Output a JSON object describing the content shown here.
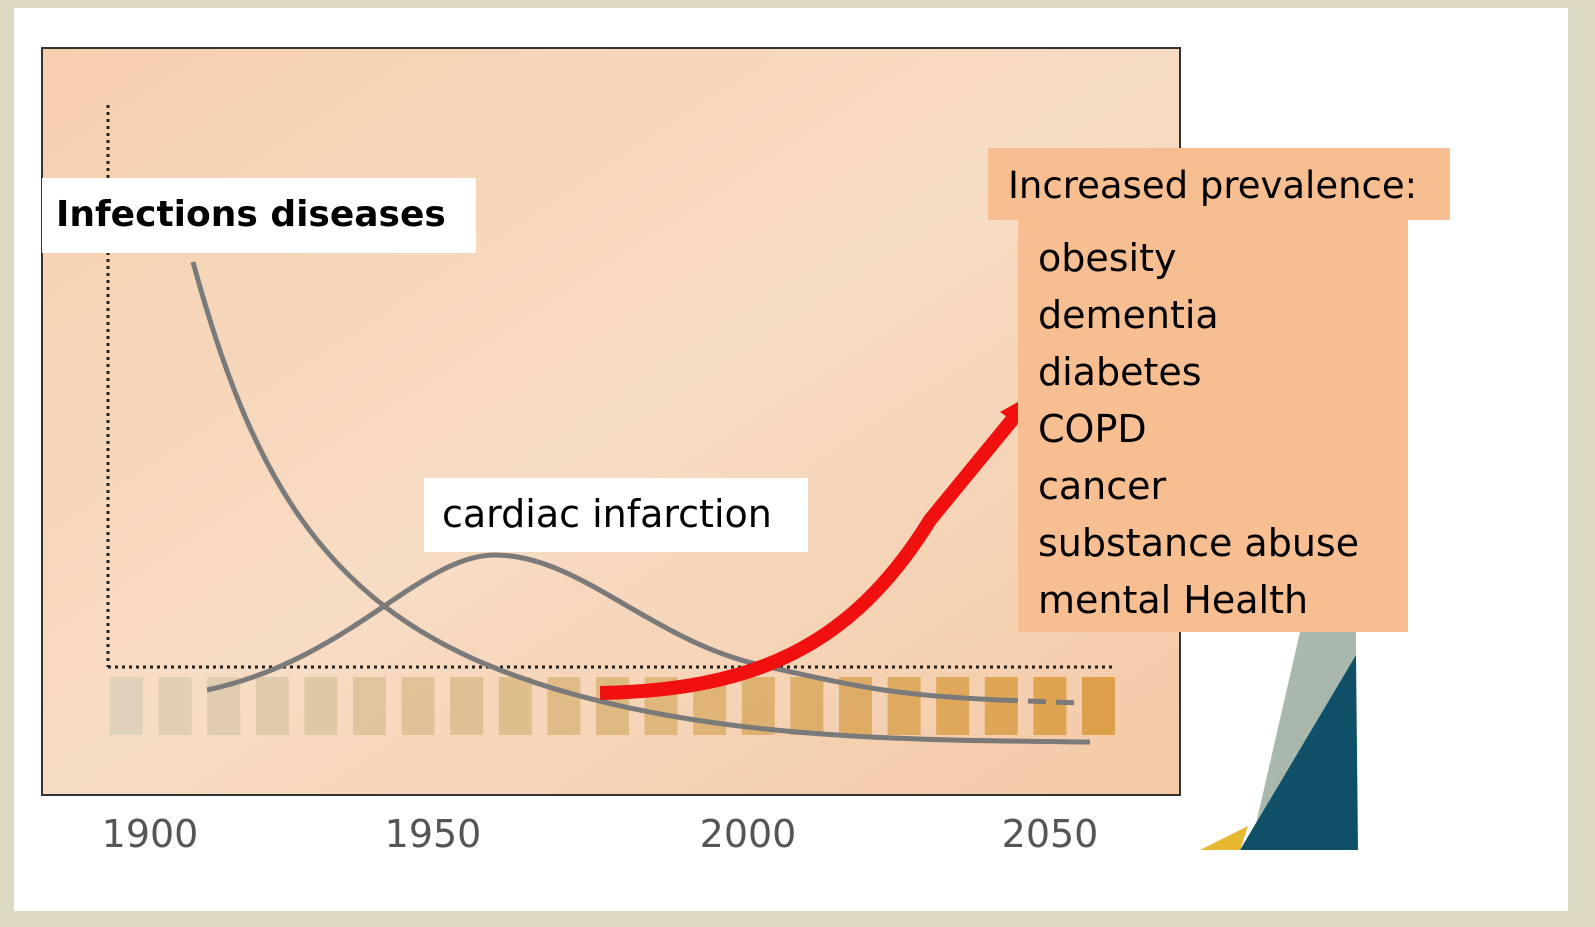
{
  "labels": {
    "infections": "Infections diseases",
    "cardiac": "cardiac infarction"
  },
  "x_axis": [
    "1900",
    "1950",
    "2000",
    "2050"
  ],
  "prevalence": {
    "title": "Increased prevalence:",
    "items": [
      "obesity",
      "dementia",
      "diabetes",
      "COPD",
      "cancer",
      "substance abuse",
      "mental Health"
    ]
  }
}
